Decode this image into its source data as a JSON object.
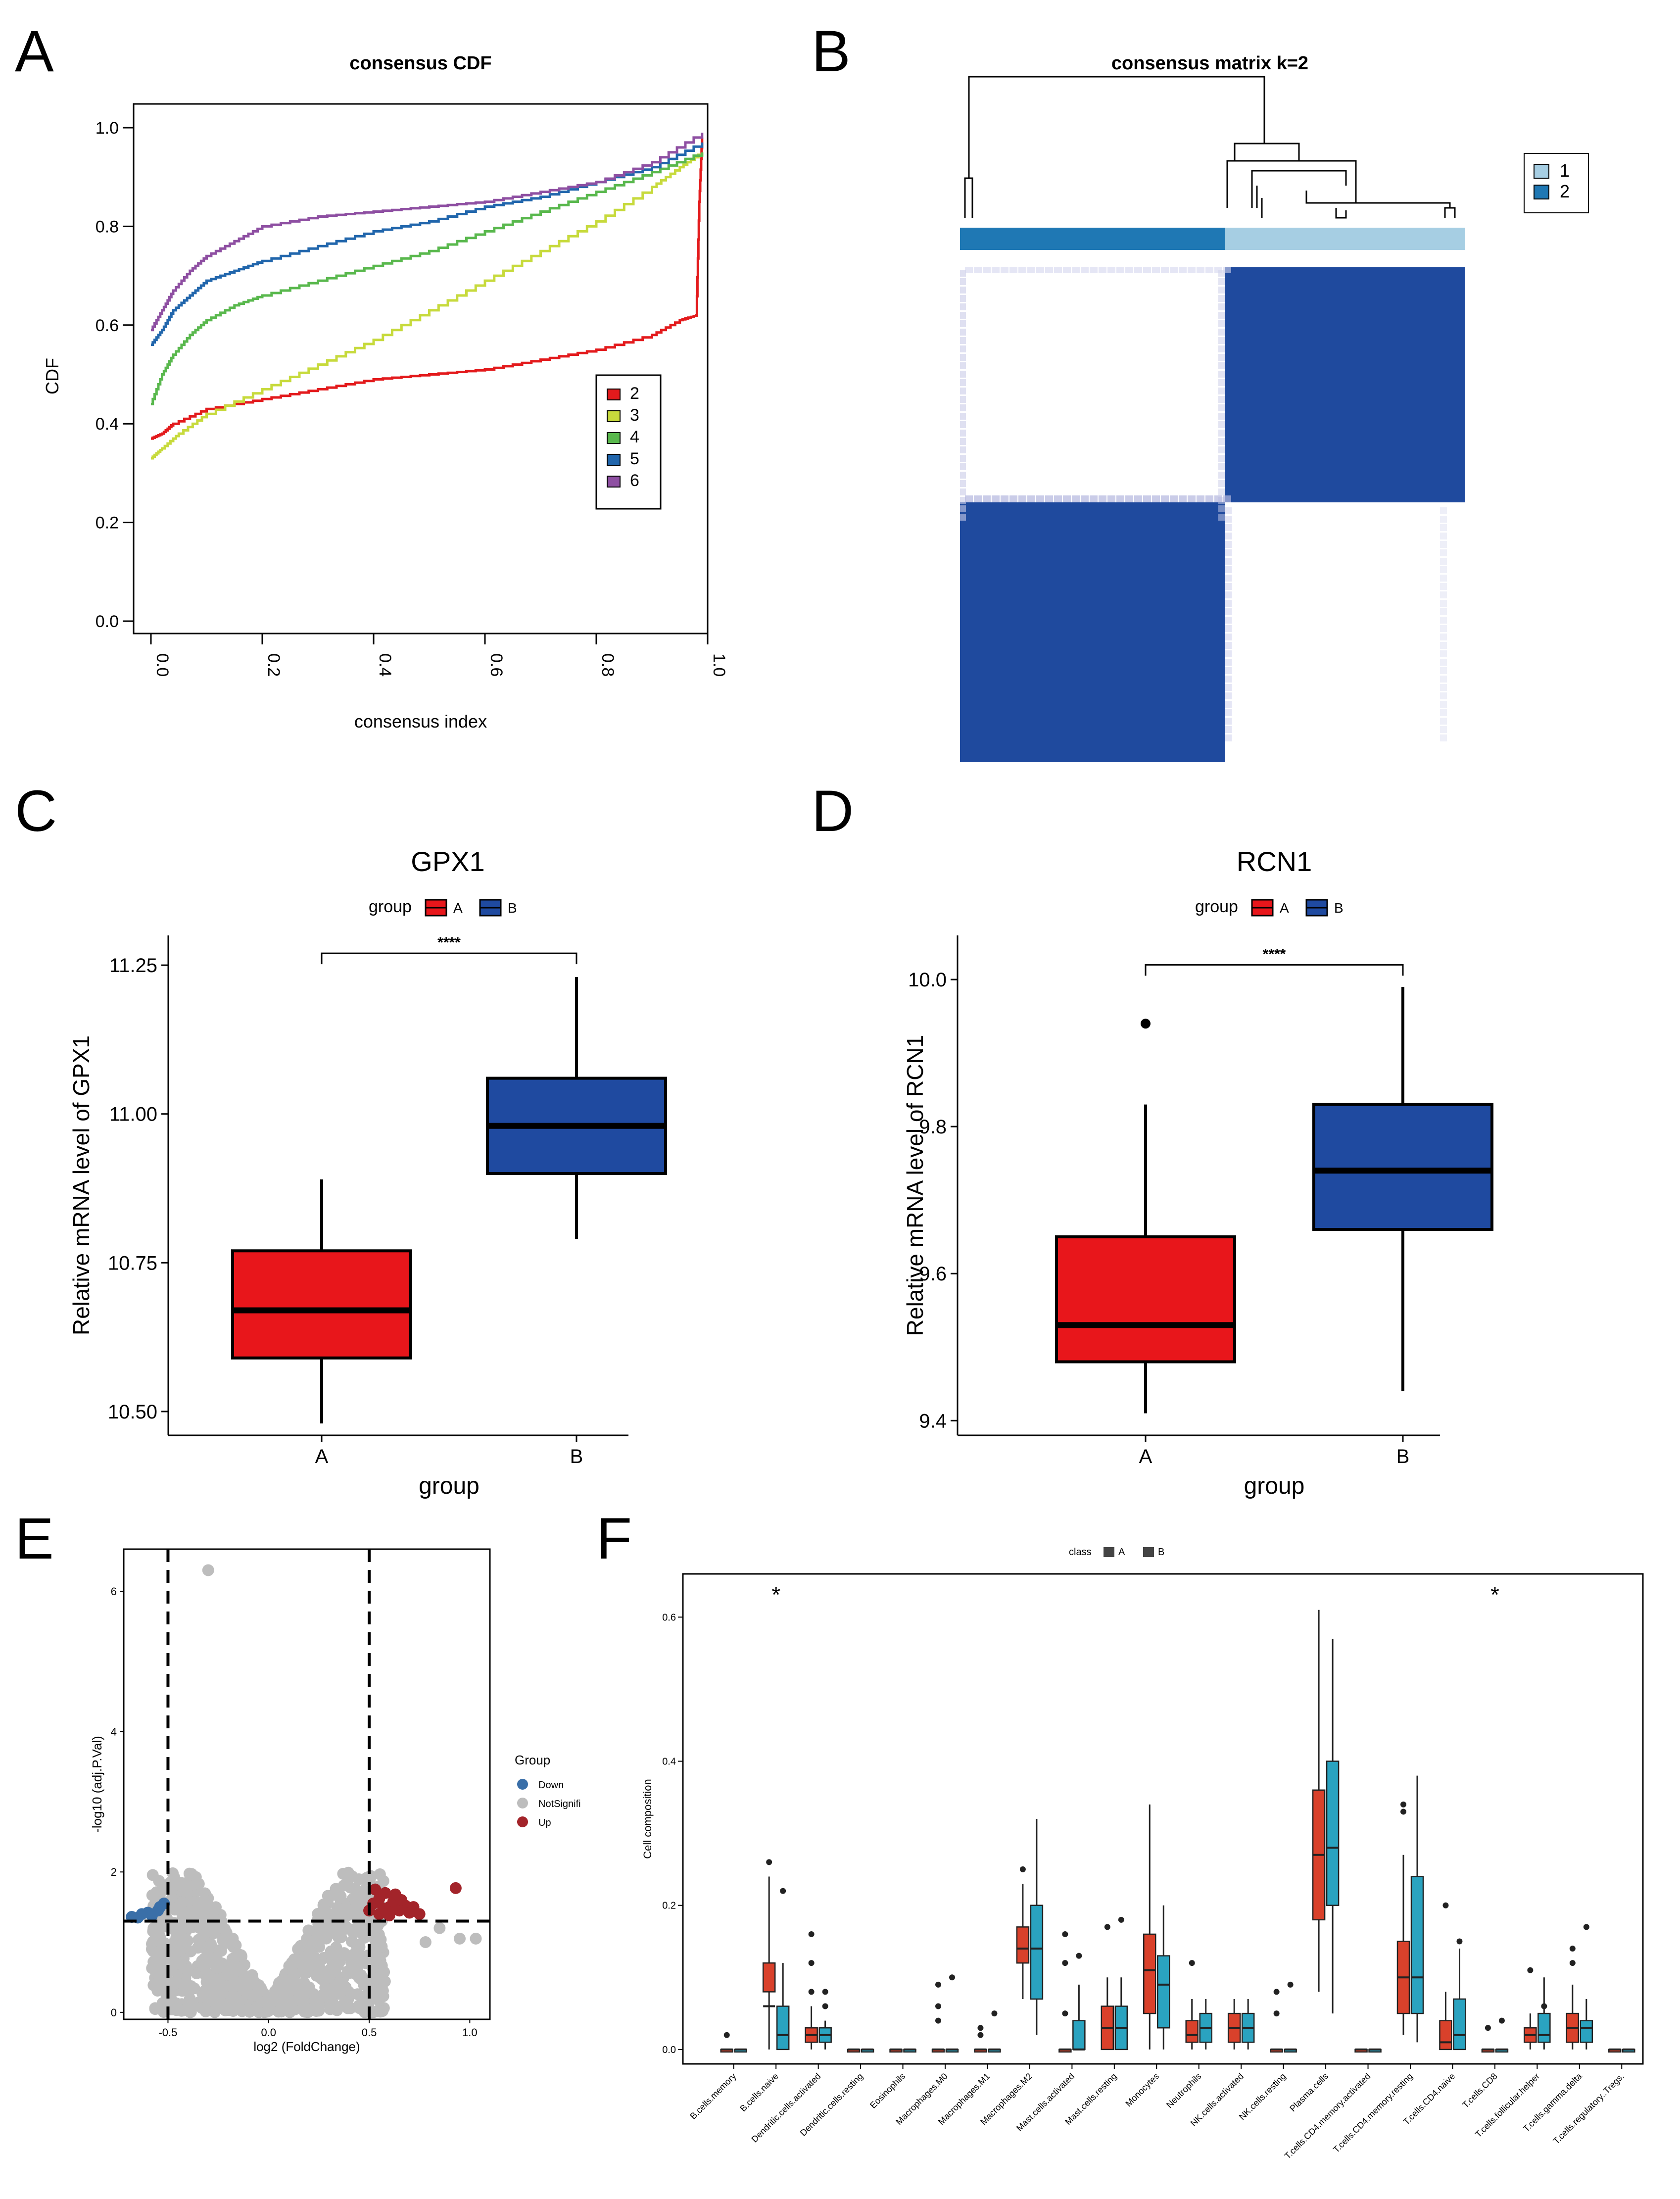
{
  "panels": {
    "a": "A",
    "b": "B",
    "c": "C",
    "d": "D",
    "e": "E",
    "f": "F"
  },
  "chart_data": [
    {
      "id": "A",
      "type": "line",
      "title": "consensus CDF",
      "xlabel": "consensus index",
      "ylabel": "CDF",
      "xlim": [
        0,
        1
      ],
      "ylim": [
        0,
        1
      ],
      "xticks": [
        "0.0",
        "0.2",
        "0.4",
        "0.6",
        "0.8",
        "1.0"
      ],
      "yticks": [
        "0.0",
        "0.2",
        "0.4",
        "0.6",
        "0.8",
        "1.0"
      ],
      "legend_position": "right-center",
      "series": [
        {
          "name": "2",
          "color": "#e31a1c",
          "x": [
            0,
            0.02,
            0.04,
            0.1,
            0.2,
            0.3,
            0.4,
            0.5,
            0.6,
            0.7,
            0.8,
            0.9,
            0.95,
            0.98,
            0.985,
            0.99
          ],
          "y": [
            0.37,
            0.38,
            0.4,
            0.43,
            0.45,
            0.47,
            0.49,
            0.5,
            0.51,
            0.53,
            0.55,
            0.58,
            0.61,
            0.62,
            0.85,
            0.98
          ]
        },
        {
          "name": "3",
          "color": "#c7da3c",
          "x": [
            0,
            0.02,
            0.05,
            0.1,
            0.2,
            0.3,
            0.4,
            0.5,
            0.6,
            0.7,
            0.8,
            0.9,
            0.95,
            0.99
          ],
          "y": [
            0.33,
            0.35,
            0.38,
            0.42,
            0.47,
            0.52,
            0.57,
            0.63,
            0.69,
            0.75,
            0.81,
            0.88,
            0.92,
            0.95
          ]
        },
        {
          "name": "4",
          "color": "#59b84d",
          "x": [
            0,
            0.02,
            0.04,
            0.07,
            0.1,
            0.15,
            0.2,
            0.3,
            0.4,
            0.5,
            0.6,
            0.7,
            0.8,
            0.9,
            0.99
          ],
          "y": [
            0.44,
            0.5,
            0.54,
            0.58,
            0.61,
            0.64,
            0.66,
            0.69,
            0.72,
            0.75,
            0.79,
            0.83,
            0.87,
            0.91,
            0.95
          ]
        },
        {
          "name": "5",
          "color": "#2166ac",
          "x": [
            0,
            0.02,
            0.04,
            0.07,
            0.1,
            0.15,
            0.2,
            0.3,
            0.4,
            0.5,
            0.6,
            0.7,
            0.8,
            0.9,
            0.99
          ],
          "y": [
            0.56,
            0.59,
            0.63,
            0.66,
            0.69,
            0.71,
            0.73,
            0.76,
            0.79,
            0.81,
            0.84,
            0.86,
            0.89,
            0.92,
            0.97
          ]
        },
        {
          "name": "6",
          "color": "#8e4fa2",
          "x": [
            0,
            0.02,
            0.04,
            0.07,
            0.1,
            0.15,
            0.2,
            0.3,
            0.4,
            0.5,
            0.6,
            0.7,
            0.8,
            0.9,
            0.99
          ],
          "y": [
            0.59,
            0.63,
            0.67,
            0.71,
            0.74,
            0.77,
            0.8,
            0.82,
            0.83,
            0.84,
            0.85,
            0.87,
            0.89,
            0.93,
            0.99
          ]
        }
      ]
    },
    {
      "id": "B",
      "type": "heatmap",
      "title": "consensus matrix k=2",
      "legend": [
        {
          "label": "1",
          "color": "#a6cee3"
        },
        {
          "label": "2",
          "color": "#1f78b4"
        }
      ],
      "cluster_fraction": {
        "cluster2": 0.525,
        "cluster1": 0.475
      },
      "high_color": "#1f4a9e",
      "low_color": "#ffffff"
    },
    {
      "id": "C",
      "type": "box",
      "title": "GPX1",
      "xlabel": "group",
      "ylabel": "Relative mRNA level of GPX1",
      "legend_title": "group",
      "categories": [
        "A",
        "B"
      ],
      "colors": [
        "#e8161b",
        "#1f4aa0"
      ],
      "ylim": [
        10.46,
        11.3
      ],
      "yticks": [
        10.5,
        10.75,
        11.0,
        11.25
      ],
      "ytick_labels": [
        "10.50",
        "10.75",
        "11.00",
        "11.25"
      ],
      "boxes": [
        {
          "min": 10.48,
          "q1": 10.59,
          "median": 10.67,
          "q3": 10.77,
          "max": 10.89,
          "outliers": []
        },
        {
          "min": 10.79,
          "q1": 10.9,
          "median": 10.98,
          "q3": 11.06,
          "max": 11.23,
          "outliers": []
        }
      ],
      "significance": "****",
      "sig_y": 11.27
    },
    {
      "id": "D",
      "type": "box",
      "title": "RCN1",
      "xlabel": "group",
      "ylabel": "Relative mRNA level of RCN1",
      "legend_title": "group",
      "categories": [
        "A",
        "B"
      ],
      "colors": [
        "#e8161b",
        "#1f4aa0"
      ],
      "ylim": [
        9.38,
        10.06
      ],
      "yticks": [
        9.4,
        9.6,
        9.8,
        10.0
      ],
      "ytick_labels": [
        "9.4",
        "9.6",
        "9.8",
        "10.0"
      ],
      "boxes": [
        {
          "min": 9.41,
          "q1": 9.48,
          "median": 9.53,
          "q3": 9.65,
          "max": 9.83,
          "outliers": [
            9.94
          ]
        },
        {
          "min": 9.44,
          "q1": 9.66,
          "median": 9.74,
          "q3": 9.83,
          "max": 9.99,
          "outliers": []
        }
      ],
      "significance": "****",
      "sig_y": 10.02
    },
    {
      "id": "E",
      "type": "scatter",
      "xlabel": "log2 (FoldChange)",
      "ylabel": "-log10 (adj.P.Val)",
      "xlim": [
        -0.72,
        1.1
      ],
      "ylim": [
        -0.1,
        6.6
      ],
      "xticks": [
        "-0.5",
        "0.0",
        "0.5",
        "1.0"
      ],
      "yticks": [
        "0",
        "2",
        "4",
        "6"
      ],
      "legend_title": "Group",
      "legend": [
        {
          "label": "Down",
          "color": "#3a6fa8"
        },
        {
          "label": "NotSignifi",
          "color": "#bdbdbd"
        },
        {
          "label": "Up",
          "color": "#a3242a"
        }
      ],
      "thresholds": {
        "x": [
          -0.5,
          0.5
        ],
        "y": 1.3
      },
      "up_points": [
        [
          0.52,
          1.55
        ],
        [
          0.55,
          1.62
        ],
        [
          0.58,
          1.7
        ],
        [
          0.6,
          1.5
        ],
        [
          0.62,
          1.58
        ],
        [
          0.65,
          1.45
        ],
        [
          0.68,
          1.52
        ],
        [
          0.55,
          1.4
        ],
        [
          0.6,
          1.38
        ],
        [
          0.7,
          1.42
        ],
        [
          0.53,
          1.75
        ],
        [
          0.57,
          1.48
        ],
        [
          0.63,
          1.68
        ],
        [
          0.66,
          1.6
        ],
        [
          0.72,
          1.5
        ],
        [
          0.93,
          1.77
        ],
        [
          0.75,
          1.4
        ],
        [
          0.5,
          1.45
        ]
      ],
      "down_points": [
        [
          -0.65,
          1.35
        ],
        [
          -0.6,
          1.42
        ],
        [
          -0.55,
          1.45
        ],
        [
          -0.52,
          1.55
        ],
        [
          -0.58,
          1.38
        ],
        [
          -0.63,
          1.4
        ],
        [
          -0.68,
          1.36
        ],
        [
          -0.54,
          1.5
        ]
      ],
      "outlier_points": [
        [
          -0.3,
          6.3
        ],
        [
          0.78,
          1.0
        ],
        [
          0.95,
          1.05
        ],
        [
          1.03,
          1.05
        ],
        [
          0.85,
          1.2
        ]
      ]
    },
    {
      "id": "F",
      "type": "box",
      "xlabel": "",
      "ylabel": "Cell composition",
      "legend_title": "class",
      "series_names": [
        "A",
        "B"
      ],
      "colors": [
        "#d9412b",
        "#2aa3c0"
      ],
      "ylim": [
        -0.02,
        0.66
      ],
      "yticks": [
        "0.0",
        "0.2",
        "0.4",
        "0.6"
      ],
      "categories": [
        "B.cells.memory",
        "B.cells.naive",
        "Dendritic.cells.activated",
        "Dendritic.cells.resting",
        "Eosinophils",
        "Macrophages.M0",
        "Macrophages.M1",
        "Macrophages.M2",
        "Mast.cells.activated",
        "Mast.cells.resting",
        "Monocytes",
        "Neutrophils",
        "NK.cells.activated",
        "NK.cells.resting",
        "Plasma.cells",
        "T.cells.CD4.memory.activated",
        "T.cells.CD4.memory.resting",
        "T.cells.CD4.naive",
        "T.cells.CD8",
        "T.cells.follicular.helper",
        "T.cells.gamma.delta",
        "T.cells.regulatory..Tregs."
      ],
      "significance": [
        {
          "category": "B.cells.naive",
          "label": "*"
        },
        {
          "category": "T.cells.CD8",
          "label": "*"
        }
      ],
      "boxes_A": [
        [
          0,
          0,
          0,
          0,
          0
        ],
        [
          0,
          0.08,
          0.06,
          0.12,
          0.24
        ],
        [
          0,
          0.01,
          0.02,
          0.03,
          0.06
        ],
        [
          0,
          0,
          0,
          0,
          0
        ],
        [
          0,
          0,
          0,
          0,
          0
        ],
        [
          0,
          0,
          0,
          0,
          0
        ],
        [
          0,
          0,
          0,
          0,
          0
        ],
        [
          0.07,
          0.12,
          0.14,
          0.17,
          0.23
        ],
        [
          0,
          0,
          0,
          0,
          0
        ],
        [
          0,
          0,
          0.03,
          0.06,
          0.1
        ],
        [
          0,
          0.05,
          0.11,
          0.16,
          0.34
        ],
        [
          0,
          0.01,
          0.02,
          0.04,
          0.07
        ],
        [
          0,
          0.01,
          0.03,
          0.05,
          0.07
        ],
        [
          0,
          0,
          0,
          0,
          0
        ],
        [
          0.08,
          0.18,
          0.27,
          0.36,
          0.61
        ],
        [
          0,
          0,
          0,
          0,
          0
        ],
        [
          0.02,
          0.05,
          0.1,
          0.15,
          0.27
        ],
        [
          0,
          0,
          0.01,
          0.04,
          0.08
        ],
        [
          0,
          0,
          0,
          0,
          0
        ],
        [
          0,
          0.01,
          0.02,
          0.03,
          0.05
        ],
        [
          0,
          0.01,
          0.03,
          0.05,
          0.09
        ],
        [
          0,
          0,
          0,
          0,
          0
        ]
      ],
      "boxes_B": [
        [
          0,
          0,
          0,
          0,
          0
        ],
        [
          0,
          0,
          0.02,
          0.06,
          0.12
        ],
        [
          0,
          0.01,
          0.02,
          0.03,
          0.04
        ],
        [
          0,
          0,
          0,
          0,
          0
        ],
        [
          0,
          0,
          0,
          0,
          0
        ],
        [
          0,
          0,
          0,
          0,
          0
        ],
        [
          0,
          0,
          0,
          0,
          0
        ],
        [
          0.02,
          0.07,
          0.14,
          0.2,
          0.32
        ],
        [
          0,
          0,
          0,
          0.04,
          0.09
        ],
        [
          0,
          0,
          0.03,
          0.06,
          0.1
        ],
        [
          0,
          0.03,
          0.09,
          0.13,
          0.2
        ],
        [
          0,
          0.01,
          0.03,
          0.05,
          0.07
        ],
        [
          0,
          0.01,
          0.03,
          0.05,
          0.07
        ],
        [
          0,
          0,
          0,
          0,
          0
        ],
        [
          0.05,
          0.2,
          0.28,
          0.4,
          0.57
        ],
        [
          0,
          0,
          0,
          0,
          0
        ],
        [
          0.01,
          0.05,
          0.1,
          0.24,
          0.38
        ],
        [
          0,
          0,
          0.02,
          0.07,
          0.14
        ],
        [
          0,
          0,
          0,
          0,
          0
        ],
        [
          0,
          0.01,
          0.02,
          0.05,
          0.1
        ],
        [
          0,
          0.01,
          0.03,
          0.04,
          0.07
        ],
        [
          0,
          0,
          0,
          0,
          0
        ]
      ],
      "outliers_A": [
        [
          0,
          0.02
        ],
        [
          1,
          0.26
        ],
        [
          2,
          0.08
        ],
        [
          2,
          0.12
        ],
        [
          2,
          0.16
        ],
        [
          5,
          0.04
        ],
        [
          5,
          0.06
        ],
        [
          5,
          0.09
        ],
        [
          6,
          0.02
        ],
        [
          6,
          0.03
        ],
        [
          7,
          0.25
        ],
        [
          8,
          0.05
        ],
        [
          8,
          0.12
        ],
        [
          8,
          0.16
        ],
        [
          9,
          0.17
        ],
        [
          11,
          0.12
        ],
        [
          13,
          0.05
        ],
        [
          13,
          0.08
        ],
        [
          16,
          0.33
        ],
        [
          16,
          0.34
        ],
        [
          17,
          0.2
        ],
        [
          18,
          0.03
        ],
        [
          19,
          0.11
        ],
        [
          20,
          0.12
        ],
        [
          20,
          0.14
        ]
      ],
      "outliers_B": [
        [
          1,
          0.22
        ],
        [
          2,
          0.06
        ],
        [
          2,
          0.08
        ],
        [
          5,
          0.1
        ],
        [
          6,
          0.05
        ],
        [
          8,
          0.13
        ],
        [
          9,
          0.18
        ],
        [
          13,
          0.09
        ],
        [
          17,
          0.15
        ],
        [
          18,
          0.04
        ],
        [
          19,
          0.06
        ],
        [
          20,
          0.17
        ]
      ]
    }
  ]
}
